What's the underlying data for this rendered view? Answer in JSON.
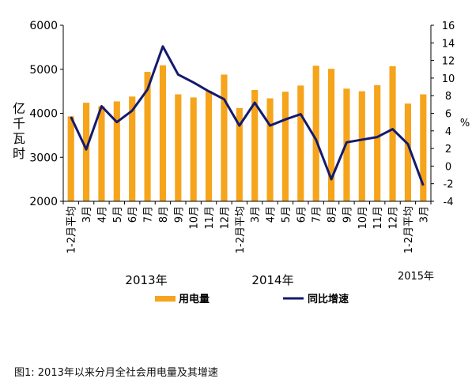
{
  "chart_data": {
    "type": "bar",
    "categories": [
      "1-2月平均",
      "3月",
      "4月",
      "5月",
      "6月",
      "7月",
      "8月",
      "9月",
      "10月",
      "11月",
      "12月",
      "1-2月平均",
      "3月",
      "4月",
      "5月",
      "6月",
      "7月",
      "8月",
      "9月",
      "10月",
      "11月",
      "12月",
      "1-2月平均",
      "3月"
    ],
    "year_labels": [
      "2013年",
      "2014年",
      "2015年"
    ],
    "series": [
      {
        "name": "用电量",
        "kind": "bar",
        "axis": "left",
        "color": "#F5A41B",
        "values": [
          3930,
          4240,
          4160,
          4270,
          4380,
          4940,
          5090,
          4430,
          4360,
          4510,
          4880,
          4120,
          4530,
          4340,
          4490,
          4630,
          5080,
          5010,
          4560,
          4500,
          4640,
          5070,
          4220,
          4430
        ]
      },
      {
        "name": "同比增速",
        "kind": "line",
        "axis": "right",
        "color": "#141A6E",
        "values": [
          5.6,
          1.9,
          6.8,
          5.0,
          6.3,
          8.7,
          13.6,
          10.4,
          9.5,
          8.5,
          7.6,
          4.6,
          7.2,
          4.6,
          5.3,
          5.9,
          3.0,
          -1.5,
          2.7,
          3.0,
          3.3,
          4.2,
          2.5,
          -2.2
        ]
      }
    ],
    "ylabel_left": "亿千瓦时",
    "ylabel_right": "%",
    "ylim_left": [
      2000,
      6000
    ],
    "yticks_left": [
      "2000",
      "3000",
      "4000",
      "5000",
      "6000"
    ],
    "ylim_right": [
      -4,
      16
    ],
    "yticks_right": [
      "-4",
      "-2",
      "0",
      "2",
      "4",
      "6",
      "8",
      "10",
      "12",
      "14",
      "16"
    ],
    "grid": false,
    "legend_position": "bottom"
  },
  "caption": "图1: 2013年以来分月全社会用电量及其增速"
}
